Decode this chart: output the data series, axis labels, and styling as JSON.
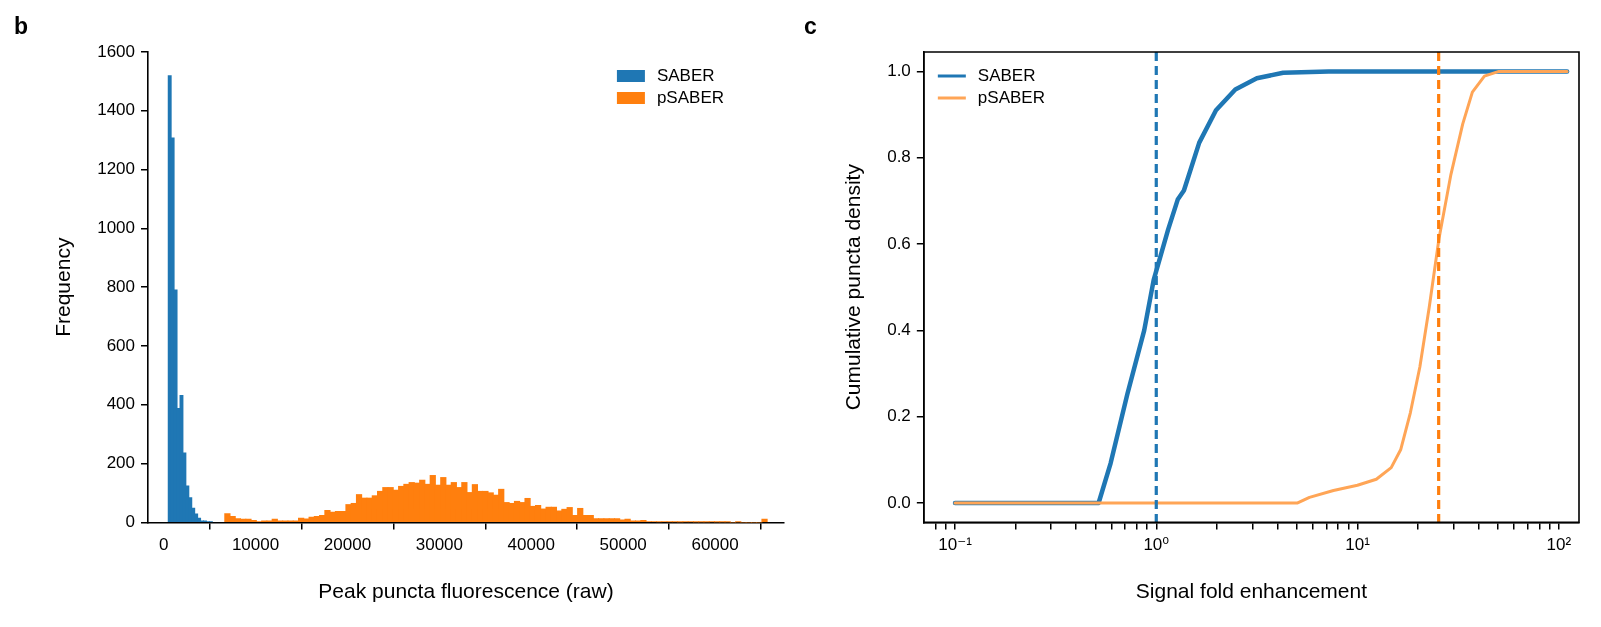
{
  "chart_data": [
    {
      "type": "histogram",
      "annotations": [
        "b"
      ],
      "xlabel": "Peak puncta fluorescence (raw)",
      "ylabel": "Frequency",
      "xlim": [
        -1700,
        67500
      ],
      "ylim": [
        0,
        1600
      ],
      "xticks": [
        0,
        10000,
        20000,
        30000,
        40000,
        50000,
        60000
      ],
      "yticks": [
        0,
        200,
        400,
        600,
        800,
        1000,
        1200,
        1400,
        1600
      ],
      "legend": "top right",
      "bins": [
        500,
        820,
        1140,
        1460,
        1780,
        2100,
        2420,
        2740,
        3060,
        3380,
        3700,
        4020,
        4340,
        4660,
        4980,
        5300,
        6650,
        7223,
        7796,
        8369,
        8942,
        9515,
        10088,
        10661,
        11234,
        11807,
        12380,
        12953,
        13526,
        14099,
        14672,
        15245,
        15818,
        16391,
        16964,
        17537,
        18110,
        18683,
        19256,
        19829,
        20402,
        20975,
        21548,
        22121,
        22694,
        23267,
        23840,
        24413,
        24986,
        25559,
        26132,
        26705,
        27278,
        27851,
        28424,
        28997,
        29570,
        30143,
        30716,
        31289,
        31862,
        32435,
        33008,
        33581,
        34154,
        34727,
        35300,
        35873,
        36446,
        37019,
        37592,
        38165,
        38738,
        39311,
        39884,
        40457,
        41030,
        41603,
        42176,
        42749,
        43322,
        43895,
        44468,
        45041,
        45614,
        46187,
        46760,
        47333,
        47906,
        48479,
        49052,
        49625,
        50198,
        50771,
        51344,
        51917,
        52490,
        53063,
        53636,
        54209,
        54782,
        55355,
        55928,
        56501,
        57074,
        57647,
        58220,
        58793,
        59366,
        59939,
        60512,
        61085,
        61658,
        62231,
        62804,
        63377,
        63950,
        64523,
        65096,
        65669
      ],
      "series": [
        {
          "name": "SABER",
          "color": "#1f77b4",
          "values": [
            1520,
            1308,
            791,
            388,
            432,
            237,
            124,
            84,
            49,
            29,
            15,
            5,
            5,
            3,
            2,
            null,
            null,
            null,
            null,
            null,
            null,
            null,
            null,
            null,
            null,
            null,
            null,
            null,
            null,
            null,
            null,
            null,
            null,
            null,
            null,
            null,
            null,
            null,
            null,
            null,
            null,
            null,
            null,
            null,
            null,
            null,
            null,
            null,
            null,
            null,
            null,
            null,
            null,
            null,
            null,
            null,
            null,
            null,
            null,
            null,
            null,
            null,
            null,
            null,
            null,
            null,
            null,
            null,
            null,
            null,
            null,
            null,
            null,
            null,
            null,
            null,
            null,
            null,
            null,
            null,
            null,
            null,
            null,
            null,
            null,
            null,
            null,
            null,
            null,
            null,
            null,
            null,
            null,
            null,
            null,
            null,
            null,
            null,
            null,
            null,
            null,
            null,
            null,
            null,
            null,
            null,
            null,
            null,
            null,
            null,
            null,
            null,
            null,
            null,
            null,
            null,
            null,
            null,
            null
          ]
        },
        {
          "name": "pSABER",
          "color": "#ff7f0e",
          "values": [
            null,
            null,
            null,
            null,
            null,
            null,
            null,
            null,
            null,
            null,
            null,
            null,
            null,
            null,
            null,
            null,
            30,
            21,
            13,
            11,
            11,
            7,
            3,
            5,
            5,
            11,
            5,
            5,
            5,
            5,
            15,
            12,
            18,
            21,
            24,
            41,
            35,
            38,
            38,
            61,
            65,
            95,
            83,
            83,
            91,
            106,
            119,
            119,
            110,
            123,
            130,
            136,
            134,
            144,
            130,
            160,
            127,
            153,
            127,
            136,
            119,
            136,
            102,
            129,
            106,
            106,
            101,
            93,
            113,
            68,
            65,
            72,
            68,
            82,
            55,
            58,
            46,
            52,
            52,
            39,
            45,
            51,
            24,
            48,
            24,
            24,
            13,
            13,
            13,
            13,
            13,
            9,
            11,
            5,
            5,
            7,
            3,
            3,
            2,
            3,
            2,
            2,
            1,
            2,
            2,
            1,
            1,
            1,
            2,
            1,
            1,
            1,
            0,
            1,
            0,
            0,
            0,
            0,
            11
          ]
        }
      ]
    },
    {
      "type": "line",
      "annotations": [
        "c"
      ],
      "xlabel": "Signal fold enhancement",
      "ylabel": "Cumulative puncta density",
      "log": "x",
      "xlim": [
        0.07,
        126
      ],
      "ylim": [
        -0.045,
        1.045
      ],
      "xticks": [
        {
          "value": 0.08,
          "label": null
        },
        {
          "value": 0.09,
          "label": null
        },
        {
          "value": 0.1,
          "label": "10⁻¹"
        },
        {
          "value": 0.2,
          "label": null
        },
        {
          "value": 0.3,
          "label": null
        },
        {
          "value": 0.4,
          "label": null
        },
        {
          "value": 0.5,
          "label": null
        },
        {
          "value": 0.6,
          "label": null
        },
        {
          "value": 0.7,
          "label": null
        },
        {
          "value": 0.8,
          "label": null
        },
        {
          "value": 0.9,
          "label": null
        },
        {
          "value": 1,
          "label": "10⁰"
        },
        {
          "value": 2,
          "label": null
        },
        {
          "value": 3,
          "label": null
        },
        {
          "value": 4,
          "label": null
        },
        {
          "value": 5,
          "label": null
        },
        {
          "value": 6,
          "label": null
        },
        {
          "value": 7,
          "label": null
        },
        {
          "value": 8,
          "label": null
        },
        {
          "value": 9,
          "label": null
        },
        {
          "value": 10,
          "label": "10¹"
        },
        {
          "value": 20,
          "label": null
        },
        {
          "value": 30,
          "label": null
        },
        {
          "value": 40,
          "label": null
        },
        {
          "value": 50,
          "label": null
        },
        {
          "value": 60,
          "label": null
        },
        {
          "value": 70,
          "label": null
        },
        {
          "value": 80,
          "label": null
        },
        {
          "value": 90,
          "label": null
        },
        {
          "value": 100,
          "label": "10²"
        }
      ],
      "yticks": [
        {
          "value": 0,
          "label": "0.0"
        },
        0.2,
        0.4,
        0.6,
        0.8,
        {
          "value": 1,
          "label": "1.0"
        }
      ],
      "legend": "top left",
      "series": [
        {
          "name": "SABER",
          "color": "#1f77b4",
          "x": [
            0.1,
            0.517,
            0.593,
            0.718,
            0.871,
            0.971,
            1.146,
            1.278,
            1.372,
            1.635,
            1.98,
            2.47,
            3.16,
            4.27,
            7.19,
            110
          ],
          "values": [
            0,
            0,
            0.092,
            0.252,
            0.4,
            0.517,
            0.634,
            0.703,
            0.724,
            0.835,
            0.91,
            0.958,
            0.984,
            0.997,
            1,
            1
          ]
        },
        {
          "name": "pSABER",
          "color": "#ffa556",
          "x": [
            0.1,
            5.04,
            5.77,
            7.59,
            9.99,
            12.4,
            14.7,
            16.4,
            18.3,
            20.4,
            22.7,
            25.4,
            29.1,
            33.3,
            37.2,
            42.7,
            50.4,
            110
          ],
          "values": [
            0,
            0,
            0.013,
            0.029,
            0.041,
            0.055,
            0.082,
            0.124,
            0.209,
            0.315,
            0.453,
            0.613,
            0.761,
            0.878,
            0.952,
            0.989,
            1,
            1
          ]
        }
      ],
      "ref_lines": [
        {
          "axis": "x",
          "value": 1,
          "color": "#1f77b4",
          "line_style": "dashed"
        },
        {
          "axis": "x",
          "value": 25.3,
          "color": "#ff7f0e",
          "line_style": "dashed"
        }
      ]
    }
  ]
}
